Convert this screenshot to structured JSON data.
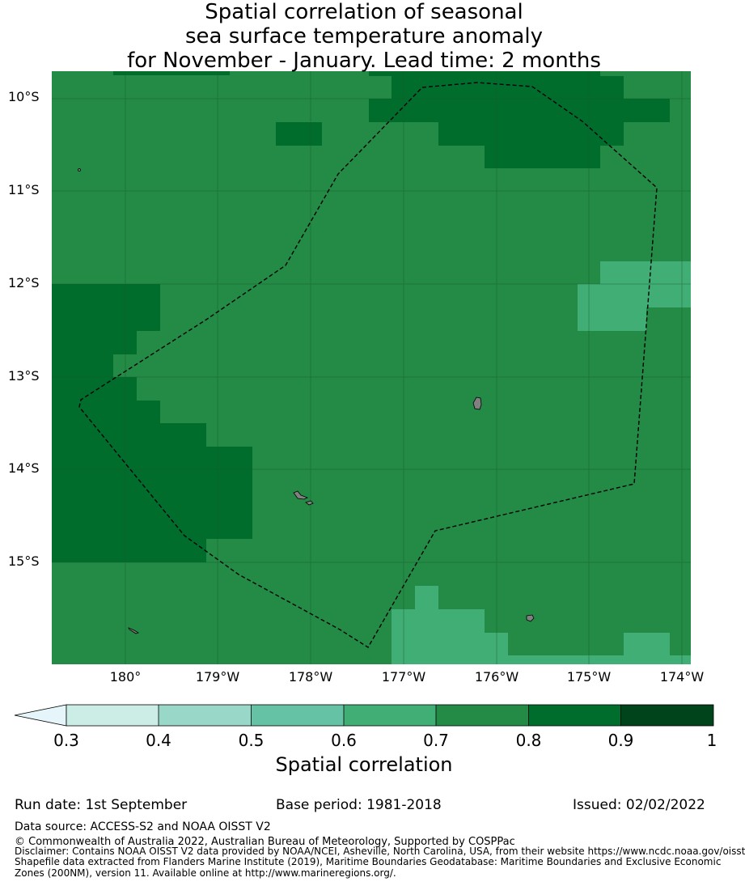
{
  "title_lines": [
    "Spatial correlation of seasonal",
    "sea surface temperature anomaly",
    "for November - January. Lead time: 2 months"
  ],
  "lat_labels": [
    "10°S",
    "11°S",
    "12°S",
    "13°S",
    "14°S",
    "15°S"
  ],
  "lon_labels": [
    "180°",
    "179°W",
    "178°W",
    "177°W",
    "176°W",
    "175°W",
    "174°W"
  ],
  "colorbar": {
    "label": "Spatial correlation",
    "ticks": [
      "0.3",
      "0.4",
      "0.5",
      "0.6",
      "0.7",
      "0.8",
      "0.9",
      "1"
    ],
    "colors": [
      "#ccece6",
      "#99d8c9",
      "#66c2a4",
      "#41ae76",
      "#238b45",
      "#006d2c",
      "#00441b"
    ],
    "extend_color": "#e5f5f9"
  },
  "chart_data": {
    "type": "heatmap",
    "x_range_deg_lon": [
      179.2,
      186.1
    ],
    "y_range_deg_lat": [
      -16.1,
      -9.7
    ],
    "dominant_value_class": "0.7-0.8",
    "regions": [
      {
        "value_class": "0.8-0.9",
        "area": "northeast 10°S-10.7°S, 177.5°W-175.2°W"
      },
      {
        "value_class": "0.8-0.9",
        "area": "west 12°S-15°S, 179.2°E-178.6°W"
      },
      {
        "value_class": "0.6-0.7",
        "area": "east 12°S-12.5°S, 175°W-174°W"
      },
      {
        "value_class": "0.6-0.7",
        "area": "south 15.3°S-16.1°S, 177°W-174°W"
      }
    ]
  },
  "footer": {
    "run_date": "Run date: 1st September",
    "base_period": "Base period: 1981-2018",
    "issued": "Issued: 02/02/2022",
    "data_source": "Data source: ACCESS-S2 and NOAA OISST V2",
    "copyright": "© Commonwealth of Australia 2022, Australian Bureau of Meteorology, Supported by COSPPac",
    "disclaimer_1": "Disclaimer: Contains NOAA OISST V2 data provided by NOAA/NCEI, Asheville, North Carolina, USA, from their website https://www.ncdc.noaa.gov/oisst",
    "disclaimer_2": "Shapefile data extracted from Flanders Marine Institute (2019), Maritime Boundaries Geodatabase: Maritime Boundaries and Exclusive Economic",
    "disclaimer_3": "Zones (200NM), version 11. Available online at http://www.marineregions.org/."
  }
}
